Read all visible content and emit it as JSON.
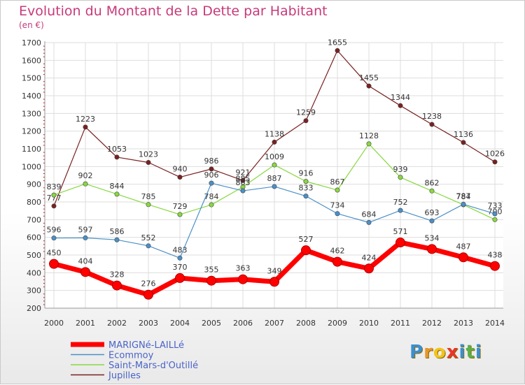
{
  "title": "Evolution du Montant de la Dette par Habitant",
  "subtitle": "(en €)",
  "brand": {
    "letters": [
      "P",
      "r",
      "o",
      "x",
      "i",
      "t",
      "i"
    ],
    "colors": [
      "#3a8fd0",
      "#e8962a",
      "#f2c41a",
      "#e8372a",
      "#3a8fd0",
      "#5ab04a",
      "#3a8fd0"
    ]
  },
  "chart_data": {
    "type": "line",
    "x": [
      "2000",
      "2001",
      "2002",
      "2003",
      "2004",
      "2005",
      "2006",
      "2007",
      "2008",
      "2009",
      "2010",
      "2011",
      "2012",
      "2013",
      "2014"
    ],
    "ylim": [
      200,
      1700
    ],
    "yticks": [
      200,
      300,
      400,
      500,
      600,
      700,
      800,
      900,
      1000,
      1100,
      1200,
      1300,
      1400,
      1500,
      1600,
      1700
    ],
    "grid": true,
    "legend_position": "bottom-left",
    "series": [
      {
        "name": "MARIGNé-LAILLé",
        "color": "#ff0000",
        "values": [
          450,
          404,
          328,
          276,
          370,
          355,
          363,
          349,
          527,
          462,
          424,
          571,
          534,
          487,
          438
        ]
      },
      {
        "name": "Ecommoy",
        "color": "#4a90c8",
        "values": [
          596,
          597,
          586,
          552,
          483,
          906,
          863,
          887,
          833,
          734,
          684,
          752,
          693,
          787,
          733
        ]
      },
      {
        "name": "Saint-Mars-d'Outillé",
        "color": "#88d840",
        "values": [
          839,
          902,
          844,
          785,
          729,
          784,
          885,
          1009,
          916,
          867,
          1128,
          939,
          862,
          784,
          700
        ]
      },
      {
        "name": "Jupilles",
        "color": "#7a2020",
        "values": [
          777,
          1223,
          1053,
          1023,
          940,
          986,
          921,
          1138,
          1259,
          1655,
          1455,
          1344,
          1238,
          1136,
          1026
        ]
      }
    ]
  }
}
